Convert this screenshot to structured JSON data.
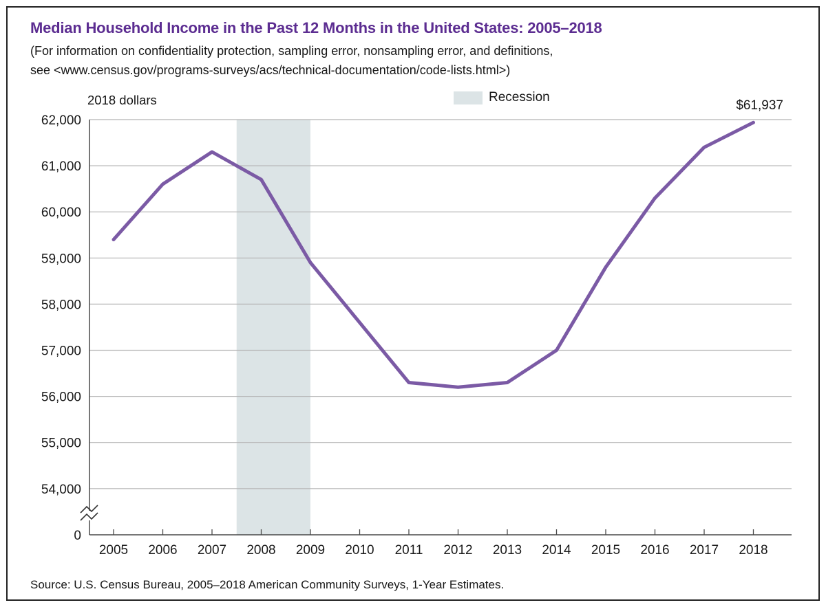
{
  "figure": {
    "title": "Median Household Income in the Past 12 Months in the United States: 2005–2018",
    "subtitle_line1": "(For information on confidentiality protection, sampling error, nonsampling error, and definitions,",
    "subtitle_line2": "see <www.census.gov/programs-surveys/acs/technical-documentation/code-lists.html>)",
    "unit_label": "2018 dollars",
    "legend_label": "Recession",
    "end_value_label": "$61,937",
    "source": "Source: U.S. Census Bureau, 2005–2018 American Community Surveys, 1-Year Estimates."
  },
  "chart_data": {
    "type": "line",
    "title": "Median Household Income in the Past 12 Months in the United States: 2005–2018",
    "ylabel": "2018 dollars",
    "xlabel": "",
    "x": [
      2005,
      2006,
      2007,
      2008,
      2009,
      2010,
      2011,
      2012,
      2013,
      2014,
      2015,
      2016,
      2017,
      2018
    ],
    "x_tick_labels": [
      "2005",
      "2006",
      "2007",
      "2008",
      "2009",
      "2010",
      "2011",
      "2012",
      "2013",
      "2014",
      "2015",
      "2016",
      "2017",
      "2018"
    ],
    "series": [
      {
        "name": "Median household income (2018 dollars)",
        "values": [
          59400,
          60600,
          61300,
          60700,
          58900,
          57600,
          56300,
          56200,
          56300,
          57000,
          58800,
          60300,
          61400,
          61937
        ]
      }
    ],
    "y_tick_labels": [
      "62,000",
      "61,000",
      "60,000",
      "59,000",
      "58,000",
      "57,000",
      "56,000",
      "55,000",
      "54,000",
      "0"
    ],
    "y_tick_values": [
      62000,
      61000,
      60000,
      59000,
      58000,
      57000,
      56000,
      55000,
      54000,
      0
    ],
    "ylim_display": [
      54000,
      62000
    ],
    "y_axis_break": true,
    "grid": "horizontal",
    "legend_position": "top-center",
    "recession_band": {
      "label": "Recession",
      "x_start": 2007.5,
      "x_end": 2009
    },
    "annotation": {
      "text": "$61,937",
      "x": 2018,
      "y": 61937
    },
    "colors": {
      "line": "#7b5aa5",
      "title": "#5c2d91",
      "recession_band": "#dce4e6",
      "grid": "#b5b5b5",
      "axis": "#4a4a4a",
      "text": "#1a1a1a"
    }
  }
}
